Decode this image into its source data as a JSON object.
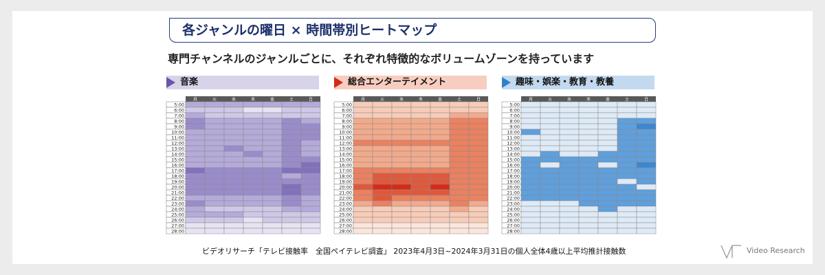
{
  "title": "各ジャンルの曜日 × 時間帯別ヒートマップ",
  "subtitle": "専門チャンネルのジャンルごとに、それぞれ特徴的なボリュームゾーンを持っています",
  "source": "ビデオリサーチ「テレビ接触率　全国ペイテレビ調査」 2023年4月3日~2024年3月31日の個人全体4歳以上平均推計接触数",
  "logo": {
    "text": "Video Research",
    "icon": "vr-logo-icon"
  },
  "colors": {
    "music": "#6a56a8",
    "entertainment": "#d42a1c",
    "hobby": "#2f80c8",
    "header_bar": "#595959"
  },
  "chart_data": [
    {
      "type": "heatmap",
      "title": "音楽",
      "x": [
        "月",
        "火",
        "水",
        "木",
        "金",
        "土",
        "日"
      ],
      "y": [
        "5:00",
        "6:00",
        "7:00",
        "8:00",
        "9:00",
        "10:00",
        "11:00",
        "12:00",
        "13:00",
        "14:00",
        "15:00",
        "16:00",
        "17:00",
        "18:00",
        "19:00",
        "20:00",
        "21:00",
        "22:00",
        "23:00",
        "24:00",
        "25:00",
        "26:00",
        "27:00",
        "28:00"
      ],
      "values": [
        [
          3,
          3,
          3,
          3,
          3,
          3,
          3
        ],
        [
          2,
          2,
          2,
          1,
          1,
          2,
          2
        ],
        [
          3,
          2,
          2,
          2,
          2,
          2,
          2
        ],
        [
          4,
          3,
          3,
          3,
          3,
          4,
          3
        ],
        [
          4,
          3,
          3,
          3,
          3,
          4,
          4
        ],
        [
          3,
          3,
          3,
          3,
          3,
          4,
          4
        ],
        [
          3,
          3,
          3,
          3,
          3,
          4,
          4
        ],
        [
          3,
          3,
          3,
          3,
          3,
          4,
          3
        ],
        [
          3,
          3,
          4,
          3,
          3,
          4,
          3
        ],
        [
          3,
          3,
          3,
          4,
          3,
          4,
          3
        ],
        [
          3,
          3,
          3,
          3,
          3,
          4,
          4
        ],
        [
          3,
          3,
          3,
          3,
          3,
          4,
          5
        ],
        [
          5,
          4,
          4,
          4,
          4,
          5,
          5
        ],
        [
          4,
          4,
          4,
          4,
          4,
          3,
          4
        ],
        [
          4,
          4,
          4,
          4,
          4,
          4,
          4
        ],
        [
          4,
          4,
          4,
          4,
          4,
          5,
          4
        ],
        [
          4,
          4,
          4,
          4,
          4,
          5,
          4
        ],
        [
          3,
          3,
          3,
          3,
          3,
          4,
          3
        ],
        [
          4,
          3,
          3,
          3,
          3,
          4,
          3
        ],
        [
          3,
          2,
          2,
          2,
          2,
          3,
          3
        ],
        [
          3,
          3,
          3,
          2,
          2,
          2,
          2
        ],
        [
          2,
          2,
          2,
          1,
          2,
          2,
          2
        ],
        [
          1,
          1,
          1,
          1,
          1,
          1,
          1
        ],
        [
          1,
          1,
          1,
          1,
          1,
          1,
          1
        ]
      ]
    },
    {
      "type": "heatmap",
      "title": "総合エンターテイメント",
      "x": [
        "月",
        "火",
        "水",
        "木",
        "金",
        "土",
        "日"
      ],
      "y": [
        "5:00",
        "6:00",
        "7:00",
        "8:00",
        "9:00",
        "10:00",
        "11:00",
        "12:00",
        "13:00",
        "14:00",
        "15:00",
        "16:00",
        "17:00",
        "18:00",
        "19:00",
        "20:00",
        "21:00",
        "22:00",
        "23:00",
        "24:00",
        "25:00",
        "26:00",
        "27:00",
        "28:00"
      ],
      "values": [
        [
          2,
          2,
          2,
          2,
          2,
          2,
          2
        ],
        [
          2,
          2,
          2,
          2,
          2,
          2,
          2
        ],
        [
          2,
          2,
          2,
          2,
          2,
          3,
          3
        ],
        [
          3,
          3,
          3,
          3,
          3,
          4,
          4
        ],
        [
          3,
          3,
          3,
          3,
          3,
          4,
          4
        ],
        [
          3,
          3,
          3,
          3,
          3,
          4,
          4
        ],
        [
          3,
          3,
          3,
          3,
          3,
          4,
          4
        ],
        [
          4,
          4,
          4,
          4,
          4,
          4,
          4
        ],
        [
          3,
          3,
          3,
          3,
          3,
          4,
          4
        ],
        [
          3,
          3,
          3,
          3,
          3,
          4,
          4
        ],
        [
          3,
          3,
          3,
          3,
          3,
          4,
          4
        ],
        [
          3,
          3,
          3,
          3,
          3,
          4,
          4
        ],
        [
          4,
          4,
          4,
          4,
          4,
          4,
          4
        ],
        [
          4,
          5,
          5,
          5,
          5,
          4,
          4
        ],
        [
          4,
          5,
          5,
          5,
          5,
          4,
          4
        ],
        [
          5,
          6,
          6,
          5,
          6,
          4,
          4
        ],
        [
          4,
          5,
          5,
          5,
          5,
          4,
          4
        ],
        [
          4,
          5,
          4,
          4,
          4,
          4,
          4
        ],
        [
          3,
          4,
          3,
          3,
          3,
          4,
          3
        ],
        [
          2,
          2,
          2,
          2,
          2,
          3,
          2
        ],
        [
          2,
          2,
          2,
          2,
          2,
          2,
          2
        ],
        [
          2,
          2,
          2,
          2,
          2,
          2,
          2
        ],
        [
          1,
          1,
          1,
          1,
          1,
          1,
          1
        ],
        [
          1,
          1,
          1,
          1,
          1,
          1,
          1
        ]
      ]
    },
    {
      "type": "heatmap",
      "title": "趣味・娯楽・教育・教養",
      "x": [
        "月",
        "火",
        "水",
        "木",
        "金",
        "土",
        "日"
      ],
      "y": [
        "5:00",
        "6:00",
        "7:00",
        "8:00",
        "9:00",
        "10:00",
        "11:00",
        "12:00",
        "13:00",
        "14:00",
        "15:00",
        "16:00",
        "17:00",
        "18:00",
        "19:00",
        "20:00",
        "21:00",
        "22:00",
        "23:00",
        "24:00",
        "25:00",
        "26:00",
        "27:00",
        "28:00"
      ],
      "values": [
        [
          1,
          1,
          1,
          1,
          1,
          1,
          1
        ],
        [
          1,
          1,
          1,
          1,
          1,
          1,
          1
        ],
        [
          1,
          1,
          1,
          1,
          1,
          1,
          1
        ],
        [
          1,
          1,
          1,
          1,
          1,
          3,
          3
        ],
        [
          1,
          1,
          1,
          1,
          1,
          3,
          4
        ],
        [
          3,
          1,
          1,
          1,
          1,
          3,
          3
        ],
        [
          1,
          1,
          1,
          1,
          1,
          3,
          3
        ],
        [
          1,
          1,
          1,
          1,
          1,
          3,
          3
        ],
        [
          1,
          1,
          1,
          1,
          1,
          3,
          3
        ],
        [
          1,
          3,
          1,
          1,
          3,
          3,
          3
        ],
        [
          3,
          3,
          3,
          3,
          3,
          3,
          3
        ],
        [
          3,
          1,
          3,
          3,
          1,
          3,
          4
        ],
        [
          3,
          3,
          3,
          3,
          3,
          3,
          3
        ],
        [
          3,
          3,
          3,
          3,
          3,
          3,
          3
        ],
        [
          3,
          3,
          3,
          3,
          3,
          1,
          3
        ],
        [
          3,
          3,
          3,
          3,
          3,
          3,
          1
        ],
        [
          3,
          3,
          3,
          3,
          3,
          3,
          3
        ],
        [
          3,
          3,
          3,
          3,
          3,
          3,
          3
        ],
        [
          1,
          1,
          1,
          3,
          3,
          3,
          3
        ],
        [
          1,
          1,
          1,
          1,
          3,
          1,
          1
        ],
        [
          1,
          1,
          1,
          1,
          1,
          1,
          1
        ],
        [
          1,
          1,
          1,
          1,
          1,
          1,
          1
        ],
        [
          1,
          1,
          1,
          1,
          1,
          1,
          1
        ],
        [
          1,
          1,
          1,
          1,
          1,
          1,
          1
        ]
      ]
    }
  ]
}
